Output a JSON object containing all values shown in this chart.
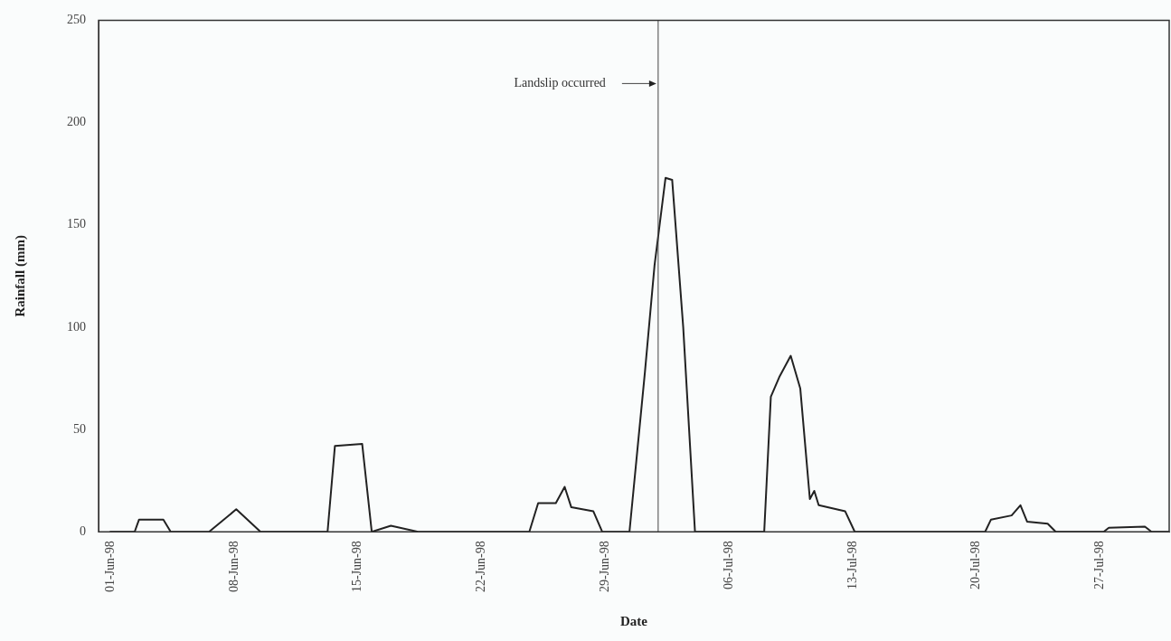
{
  "chart_data": {
    "type": "line",
    "xlabel": "Date",
    "ylabel": "Rainfall (mm)",
    "x": [
      "1998-06-01T00:00",
      "1998-06-02T09:00",
      "1998-06-02T15:00",
      "1998-06-04T00:00",
      "1998-06-04T10:00",
      "1998-06-06T14:00",
      "1998-06-08T03:00",
      "1998-06-09T12:00",
      "1998-06-13T07:00",
      "1998-06-13T17:00",
      "1998-06-15T06:00",
      "1998-06-15T19:00",
      "1998-06-16T21:00",
      "1998-06-18T10:00",
      "1998-06-24T17:00",
      "1998-06-25T05:00",
      "1998-06-26T05:00",
      "1998-06-26T17:00",
      "1998-06-27T02:00",
      "1998-06-28T08:00",
      "1998-06-28T20:00",
      "1998-06-30T09:00",
      "1998-07-01T06:00",
      "1998-07-01T19:00",
      "1998-07-02T10:00",
      "1998-07-02T19:00",
      "1998-07-03T10:00",
      "1998-07-04T02:00",
      "1998-07-08T00:00",
      "1998-07-08T09:00",
      "1998-07-08T21:00",
      "1998-07-09T12:00",
      "1998-07-10T01:00",
      "1998-07-10T14:00",
      "1998-07-10T20:00",
      "1998-07-11T02:00",
      "1998-07-12T14:00",
      "1998-07-13T03:00",
      "1998-07-20T12:00",
      "1998-07-20T20:00",
      "1998-07-22T00:00",
      "1998-07-22T12:00",
      "1998-07-22T21:00",
      "1998-07-24T01:00",
      "1998-07-24T12:00",
      "1998-07-27T05:00",
      "1998-07-27T12:00",
      "1998-07-29T13:00",
      "1998-07-29T22:00",
      "1998-07-30T22:00"
    ],
    "series": [
      {
        "color": "#222222",
        "values": [
          0,
          0,
          6,
          6,
          0,
          0,
          11,
          0,
          0,
          42,
          43,
          0,
          3,
          0,
          0,
          14,
          14,
          22,
          12,
          10,
          0,
          0,
          78,
          130,
          173,
          172,
          100,
          0,
          0,
          66,
          76,
          86,
          70,
          16,
          20,
          13,
          10,
          0,
          0,
          6,
          8,
          13,
          5,
          4,
          0,
          0,
          2,
          2.5,
          0,
          0
        ]
      }
    ],
    "xlim": [
      "1998-05-31T08:00",
      "1998-07-30T22:00"
    ],
    "xticks": [
      {
        "value": "1998-06-01",
        "label": "01-Jun-98"
      },
      {
        "value": "1998-06-08",
        "label": "08-Jun-98"
      },
      {
        "value": "1998-06-15",
        "label": "15-Jun-98"
      },
      {
        "value": "1998-06-22",
        "label": "22-Jun-98"
      },
      {
        "value": "1998-06-29",
        "label": "29-Jun-98"
      },
      {
        "value": "1998-07-06",
        "label": "06-Jul-98"
      },
      {
        "value": "1998-07-13",
        "label": "13-Jul-98"
      },
      {
        "value": "1998-07-20",
        "label": "20-Jul-98"
      },
      {
        "value": "1998-07-27",
        "label": "27-Jul-98"
      }
    ],
    "ylim": [
      0,
      250
    ],
    "yticks": [
      0,
      50,
      100,
      150,
      200,
      250
    ],
    "ref_lines": [
      {
        "axis": "x",
        "value": "1998-07-02",
        "label": "Landslip occurred",
        "color": "#444444"
      }
    ],
    "grid": false,
    "legend": false,
    "marker": "none",
    "line_style": "solid"
  }
}
